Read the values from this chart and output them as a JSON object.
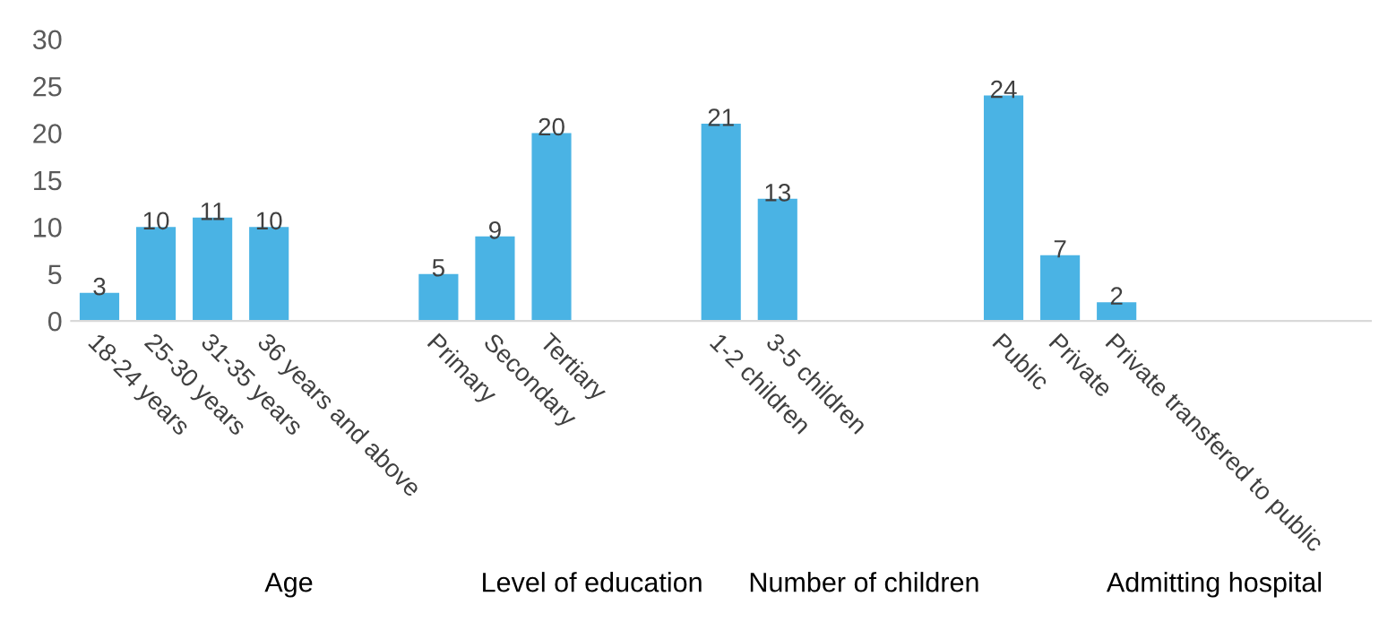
{
  "chart_data": {
    "type": "bar",
    "categories": [
      "18-24 years",
      "25-30 years",
      "31-35 years",
      "36 years and above",
      null,
      null,
      "Primary",
      "Secondary",
      "Tertiary",
      null,
      null,
      "1-2 children",
      "3-5 children",
      null,
      null,
      null,
      "Public",
      "Private",
      "Private transfered to public",
      null,
      null,
      null,
      null
    ],
    "values": [
      3,
      10,
      11,
      10,
      null,
      null,
      5,
      9,
      20,
      null,
      null,
      21,
      13,
      null,
      null,
      null,
      24,
      7,
      2,
      null,
      null,
      null,
      null
    ],
    "color": "#4ab3e4",
    "ylim": [
      0,
      30
    ],
    "yticks": [
      0,
      5,
      10,
      15,
      20,
      25,
      30
    ],
    "grid": false,
    "data_labels": true,
    "annotations": [
      "Age",
      "Level of education",
      "Number of children",
      "Admitting hospital"
    ]
  }
}
